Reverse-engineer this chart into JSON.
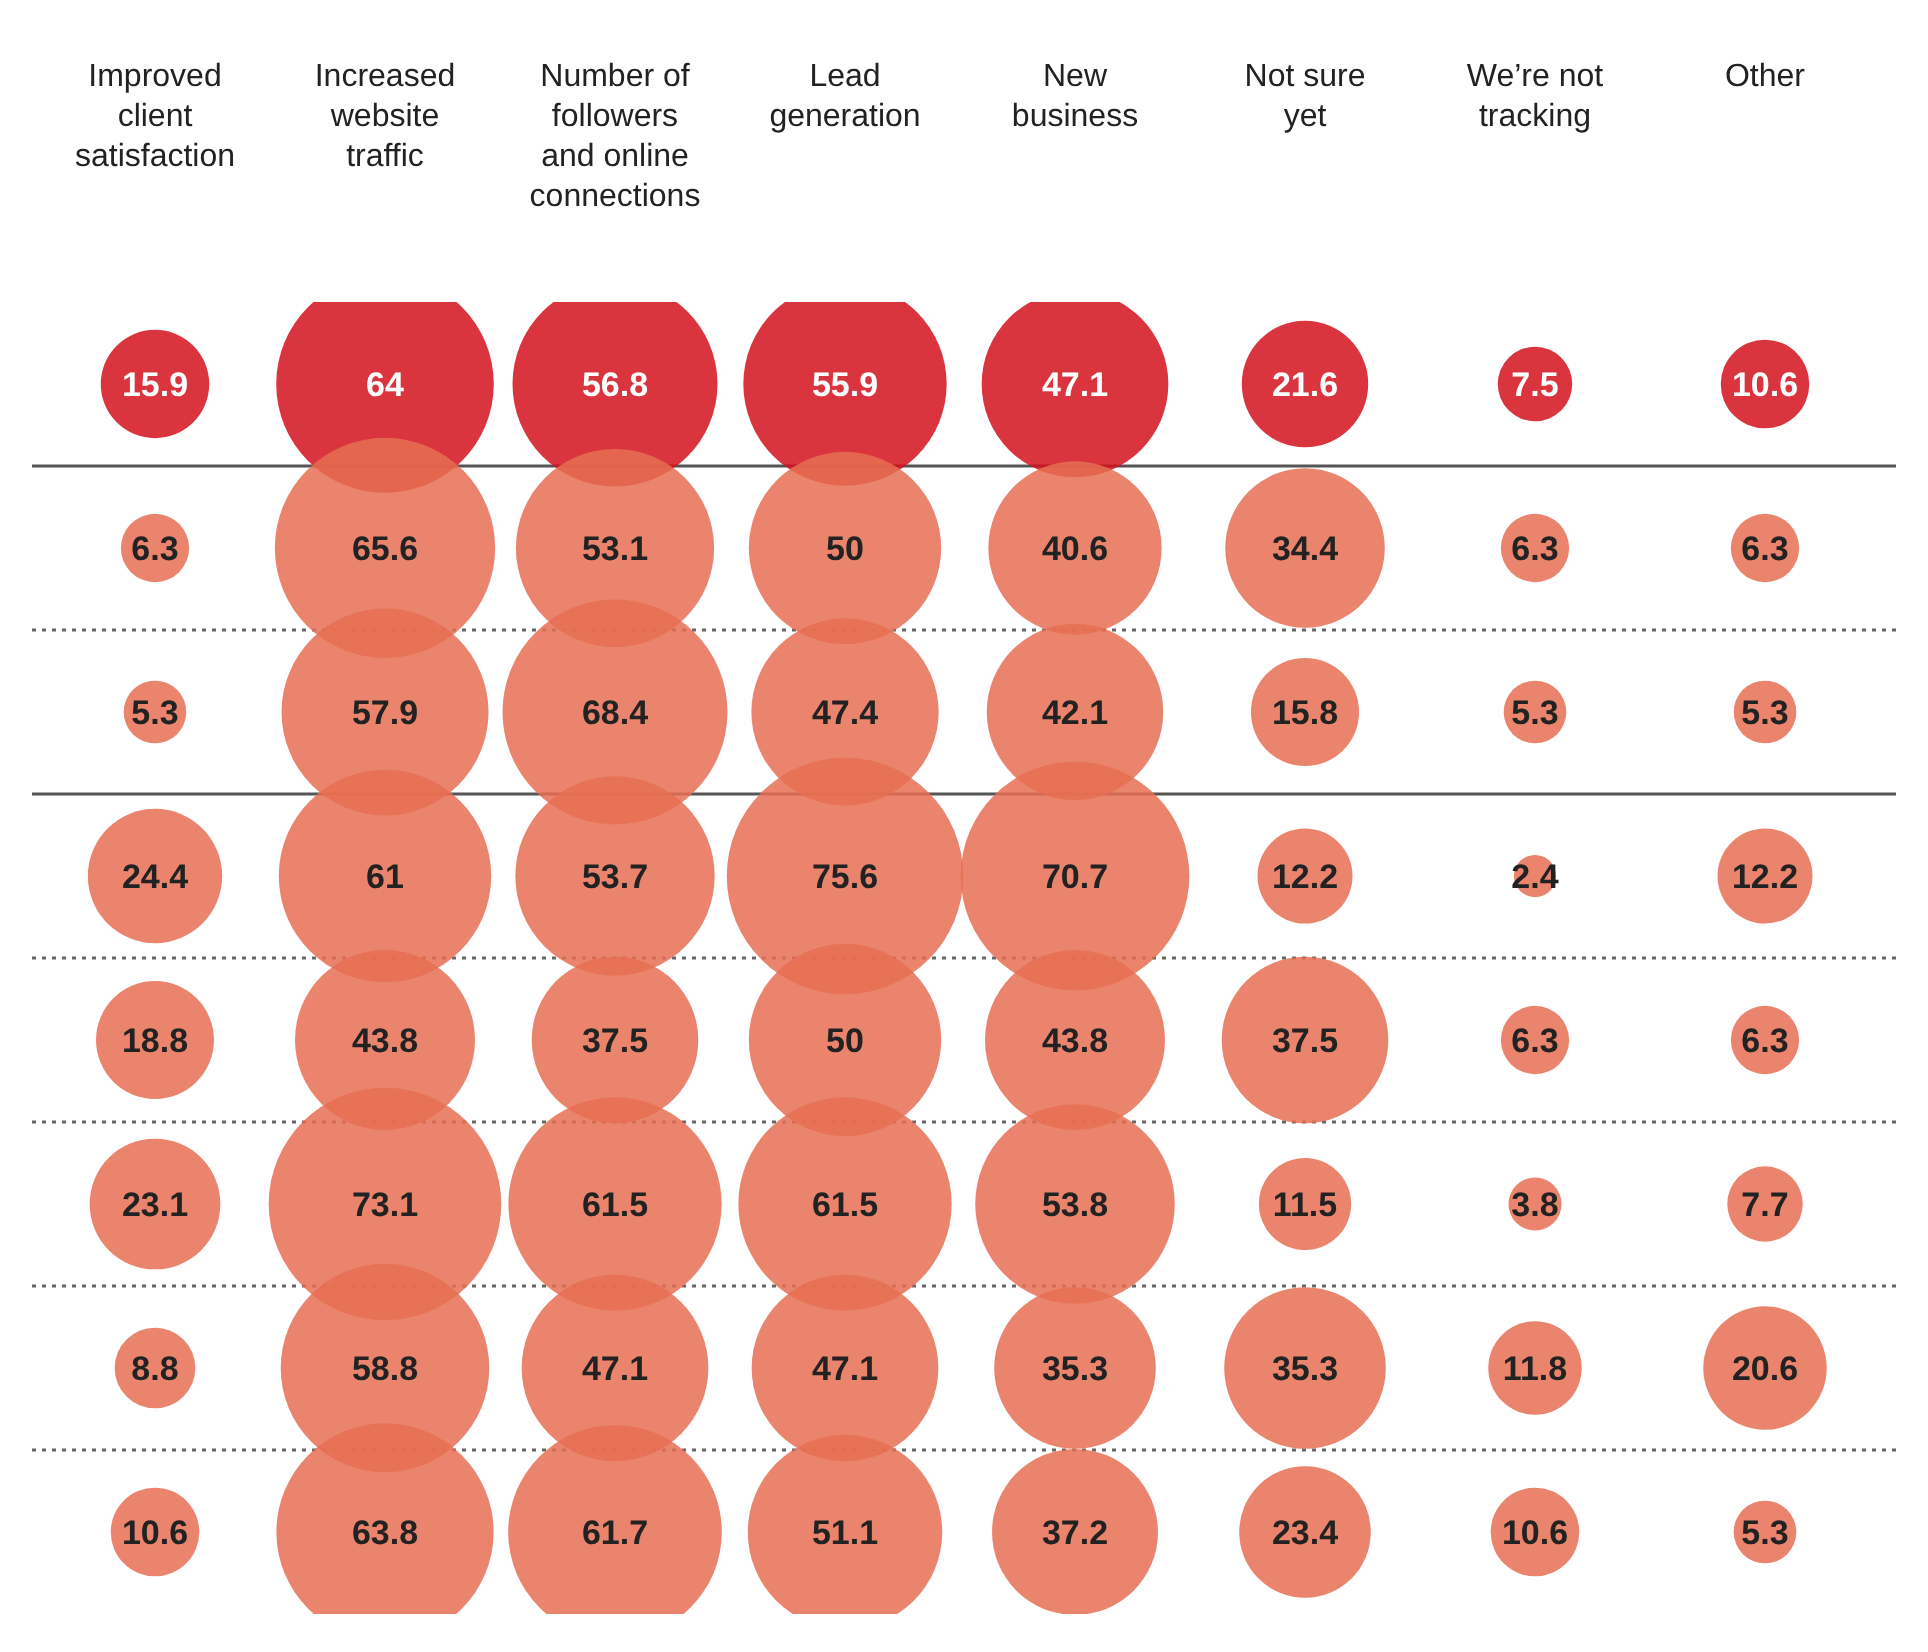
{
  "chart_data": {
    "type": "other",
    "categories": [
      "Improved client satisfaction",
      "Increased website traffic",
      "Number of followers and online connections",
      "Lead generation",
      "New business",
      "Not sure yet",
      "We’re not tracking",
      "Other"
    ],
    "series": [
      {
        "color": "#d3121c",
        "values": [
          15.9,
          64,
          56.8,
          55.9,
          47.1,
          21.6,
          7.5,
          10.6
        ]
      },
      {
        "color": "#e66f52",
        "values": [
          6.3,
          65.6,
          53.1,
          50,
          40.6,
          34.4,
          6.3,
          6.3
        ]
      },
      {
        "color": "#e66f52",
        "values": [
          5.3,
          57.9,
          68.4,
          47.4,
          42.1,
          15.8,
          5.3,
          5.3
        ]
      },
      {
        "color": "#e66f52",
        "values": [
          24.4,
          61,
          53.7,
          75.6,
          70.7,
          12.2,
          2.4,
          12.2
        ]
      },
      {
        "color": "#e66f52",
        "values": [
          18.8,
          43.8,
          37.5,
          50,
          43.8,
          37.5,
          6.3,
          6.3
        ]
      },
      {
        "color": "#e66f52",
        "values": [
          23.1,
          73.1,
          61.5,
          61.5,
          53.8,
          11.5,
          3.8,
          7.7
        ]
      },
      {
        "color": "#e66f52",
        "values": [
          8.8,
          58.8,
          47.1,
          47.1,
          35.3,
          35.3,
          11.8,
          20.6
        ]
      },
      {
        "color": "#e66f52",
        "values": [
          10.6,
          63.8,
          61.7,
          51.1,
          37.2,
          23.4,
          10.6,
          5.3
        ]
      }
    ],
    "data_labels": true
  }
}
